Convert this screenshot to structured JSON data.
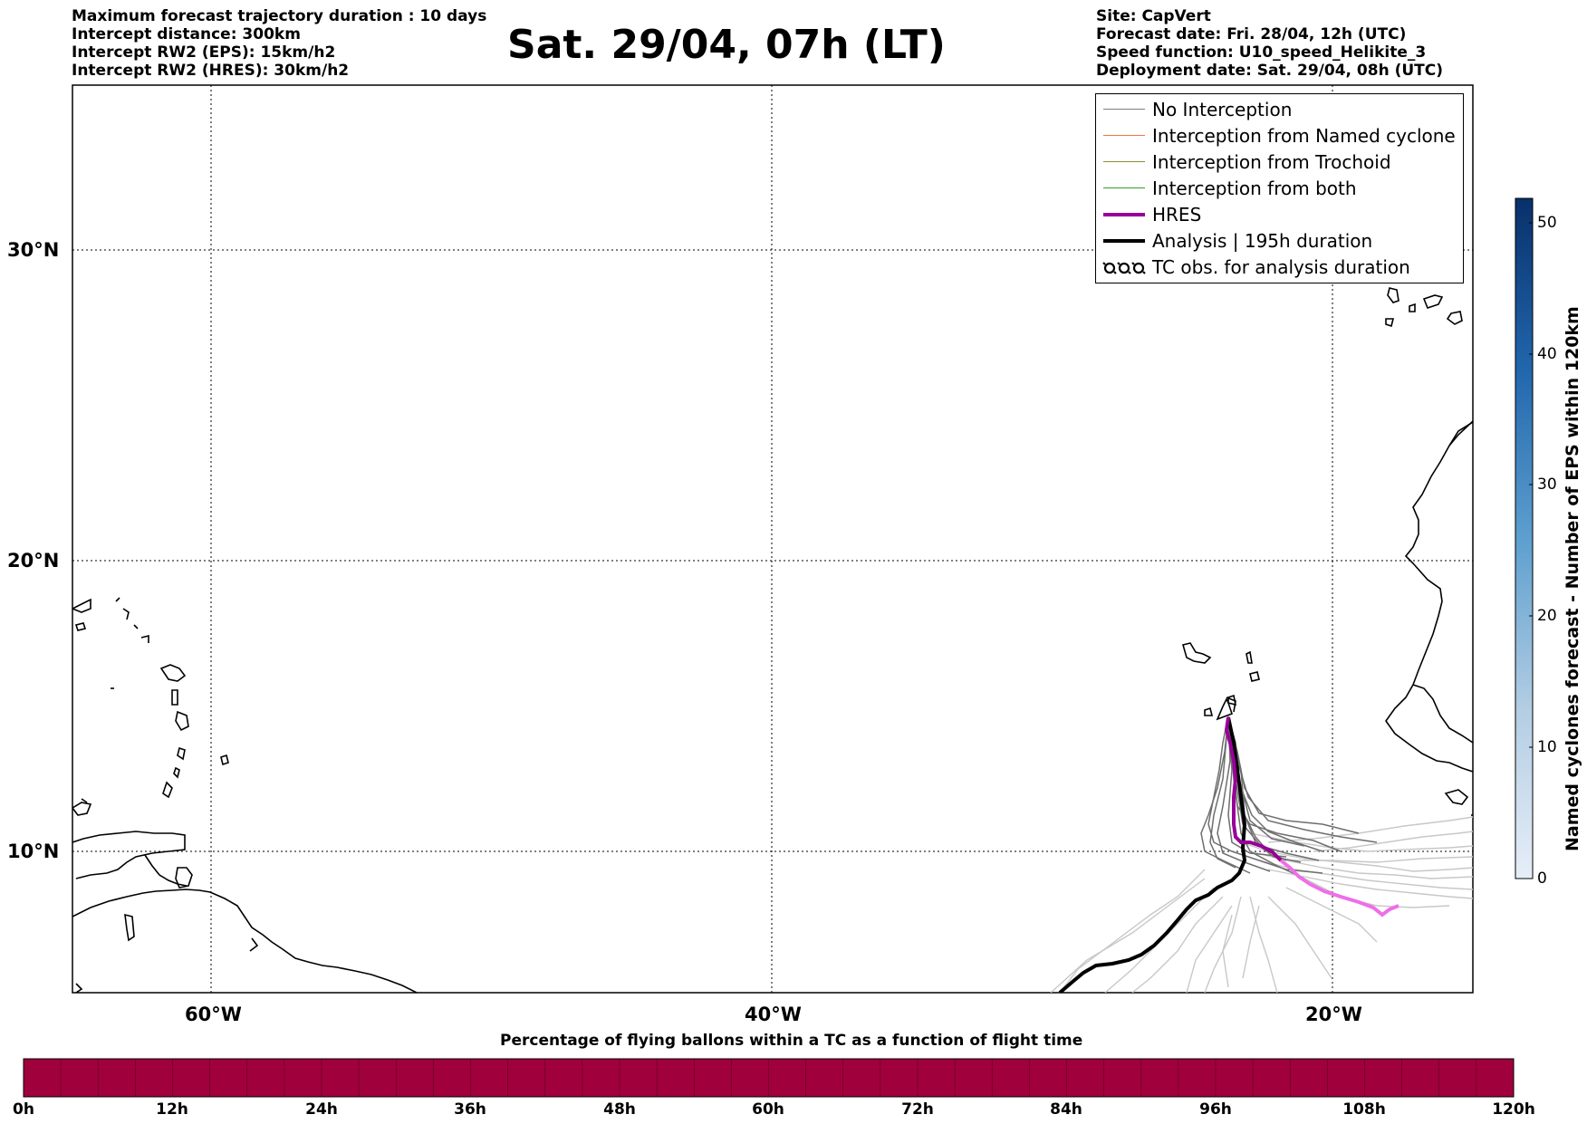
{
  "header_left": [
    "Maximum forecast trajectory duration : 10 days",
    "Intercept distance: 300km",
    "Intercept RW2 (EPS):  15km/h2",
    "Intercept RW2 (HRES): 30km/h2"
  ],
  "header_right": [
    "Site: CapVert",
    "Forecast date: Fri. 28/04, 12h (UTC)",
    "Speed function: U10_speed_Helikite_3",
    "Deployment date: Sat. 29/04, 08h (UTC)"
  ],
  "title": "Sat. 29/04, 07h (LT)",
  "map": {
    "lat_labels": [
      "30°N",
      "20°N",
      "10°N"
    ],
    "lon_labels": [
      "60°W",
      "40°W",
      "20°W"
    ]
  },
  "legend": {
    "items": [
      {
        "label": "No Interception",
        "color": "#808080"
      },
      {
        "label": "Interception from Named cyclone",
        "color": "#f4733e"
      },
      {
        "label": "Interception from Trochoid",
        "color": "#8b8b33"
      },
      {
        "label": "Interception from both",
        "color": "#2ca02c"
      },
      {
        "label": "HRES",
        "color": "#990099"
      },
      {
        "label": "Analysis | 195h duration",
        "color": "#000000"
      },
      {
        "label": "TC obs. for analysis duration",
        "color": "#000000"
      }
    ]
  },
  "vertical_colorbar": {
    "title": "Named cyclones forecast - Number of EPS within 120km",
    "ticks": [
      "0",
      "10",
      "20",
      "30",
      "40",
      "50"
    ]
  },
  "horizontal_colorbar": {
    "title": "Percentage of flying ballons within a TC as a function of flight time",
    "ticks": [
      "0h",
      "12h",
      "24h",
      "36h",
      "48h",
      "60h",
      "72h",
      "84h",
      "96h",
      "108h",
      "120h"
    ],
    "fill_color": "#a0003c"
  }
}
